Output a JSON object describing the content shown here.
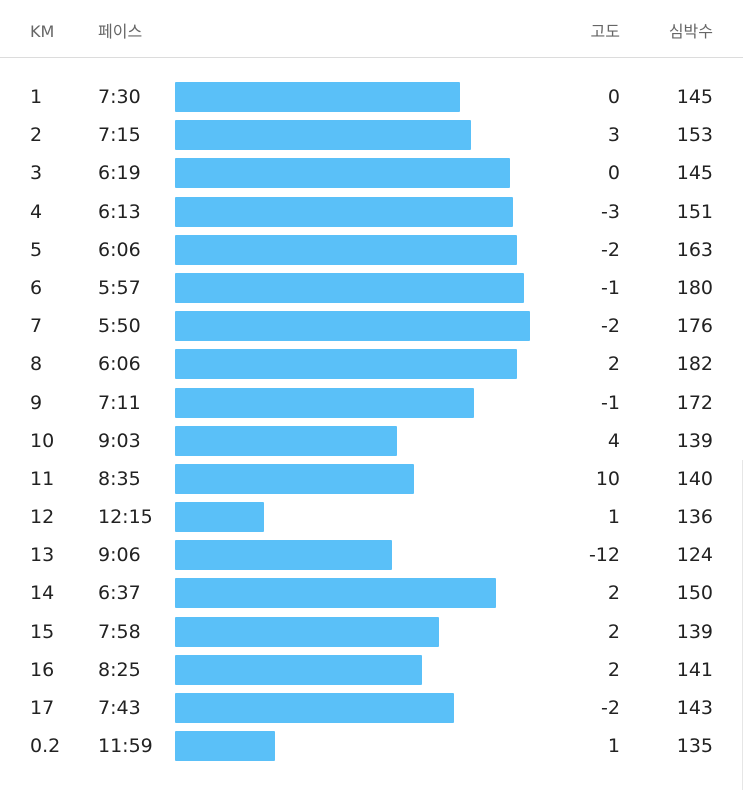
{
  "header": {
    "km": "KM",
    "pace": "페이스",
    "altitude": "고도",
    "heart_rate": "심박수"
  },
  "accent_color": "#5ac0f8",
  "splits": [
    {
      "km": "1",
      "pace": "7:30",
      "altitude": "0",
      "hr": "145",
      "pace_fill": 0.802
    },
    {
      "km": "2",
      "pace": "7:15",
      "altitude": "3",
      "hr": "153",
      "pace_fill": 0.833
    },
    {
      "km": "3",
      "pace": "6:19",
      "altitude": "0",
      "hr": "145",
      "pace_fill": 0.944
    },
    {
      "km": "4",
      "pace": "6:13",
      "altitude": "-3",
      "hr": "151",
      "pace_fill": 0.953
    },
    {
      "km": "5",
      "pace": "6:06",
      "altitude": "-2",
      "hr": "163",
      "pace_fill": 0.963
    },
    {
      "km": "6",
      "pace": "5:57",
      "altitude": "-1",
      "hr": "180",
      "pace_fill": 0.983
    },
    {
      "km": "7",
      "pace": "5:50",
      "altitude": "-2",
      "hr": "176",
      "pace_fill": 1.0
    },
    {
      "km": "8",
      "pace": "6:06",
      "altitude": "2",
      "hr": "182",
      "pace_fill": 0.963
    },
    {
      "km": "9",
      "pace": "7:11",
      "altitude": "-1",
      "hr": "172",
      "pace_fill": 0.842
    },
    {
      "km": "10",
      "pace": "9:03",
      "altitude": "4",
      "hr": "139",
      "pace_fill": 0.624
    },
    {
      "km": "11",
      "pace": "8:35",
      "altitude": "10",
      "hr": "140",
      "pace_fill": 0.672
    },
    {
      "km": "12",
      "pace": "12:15",
      "altitude": "1",
      "hr": "136",
      "pace_fill": 0.251
    },
    {
      "km": "13",
      "pace": "9:06",
      "altitude": "-12",
      "hr": "124",
      "pace_fill": 0.612
    },
    {
      "km": "14",
      "pace": "6:37",
      "altitude": "2",
      "hr": "150",
      "pace_fill": 0.904
    },
    {
      "km": "15",
      "pace": "7:58",
      "altitude": "2",
      "hr": "139",
      "pace_fill": 0.743
    },
    {
      "km": "16",
      "pace": "8:25",
      "altitude": "2",
      "hr": "141",
      "pace_fill": 0.695
    },
    {
      "km": "17",
      "pace": "7:43",
      "altitude": "-2",
      "hr": "143",
      "pace_fill": 0.785
    },
    {
      "km": "0.2",
      "pace": "11:59",
      "altitude": "1",
      "hr": "135",
      "pace_fill": 0.282
    }
  ]
}
